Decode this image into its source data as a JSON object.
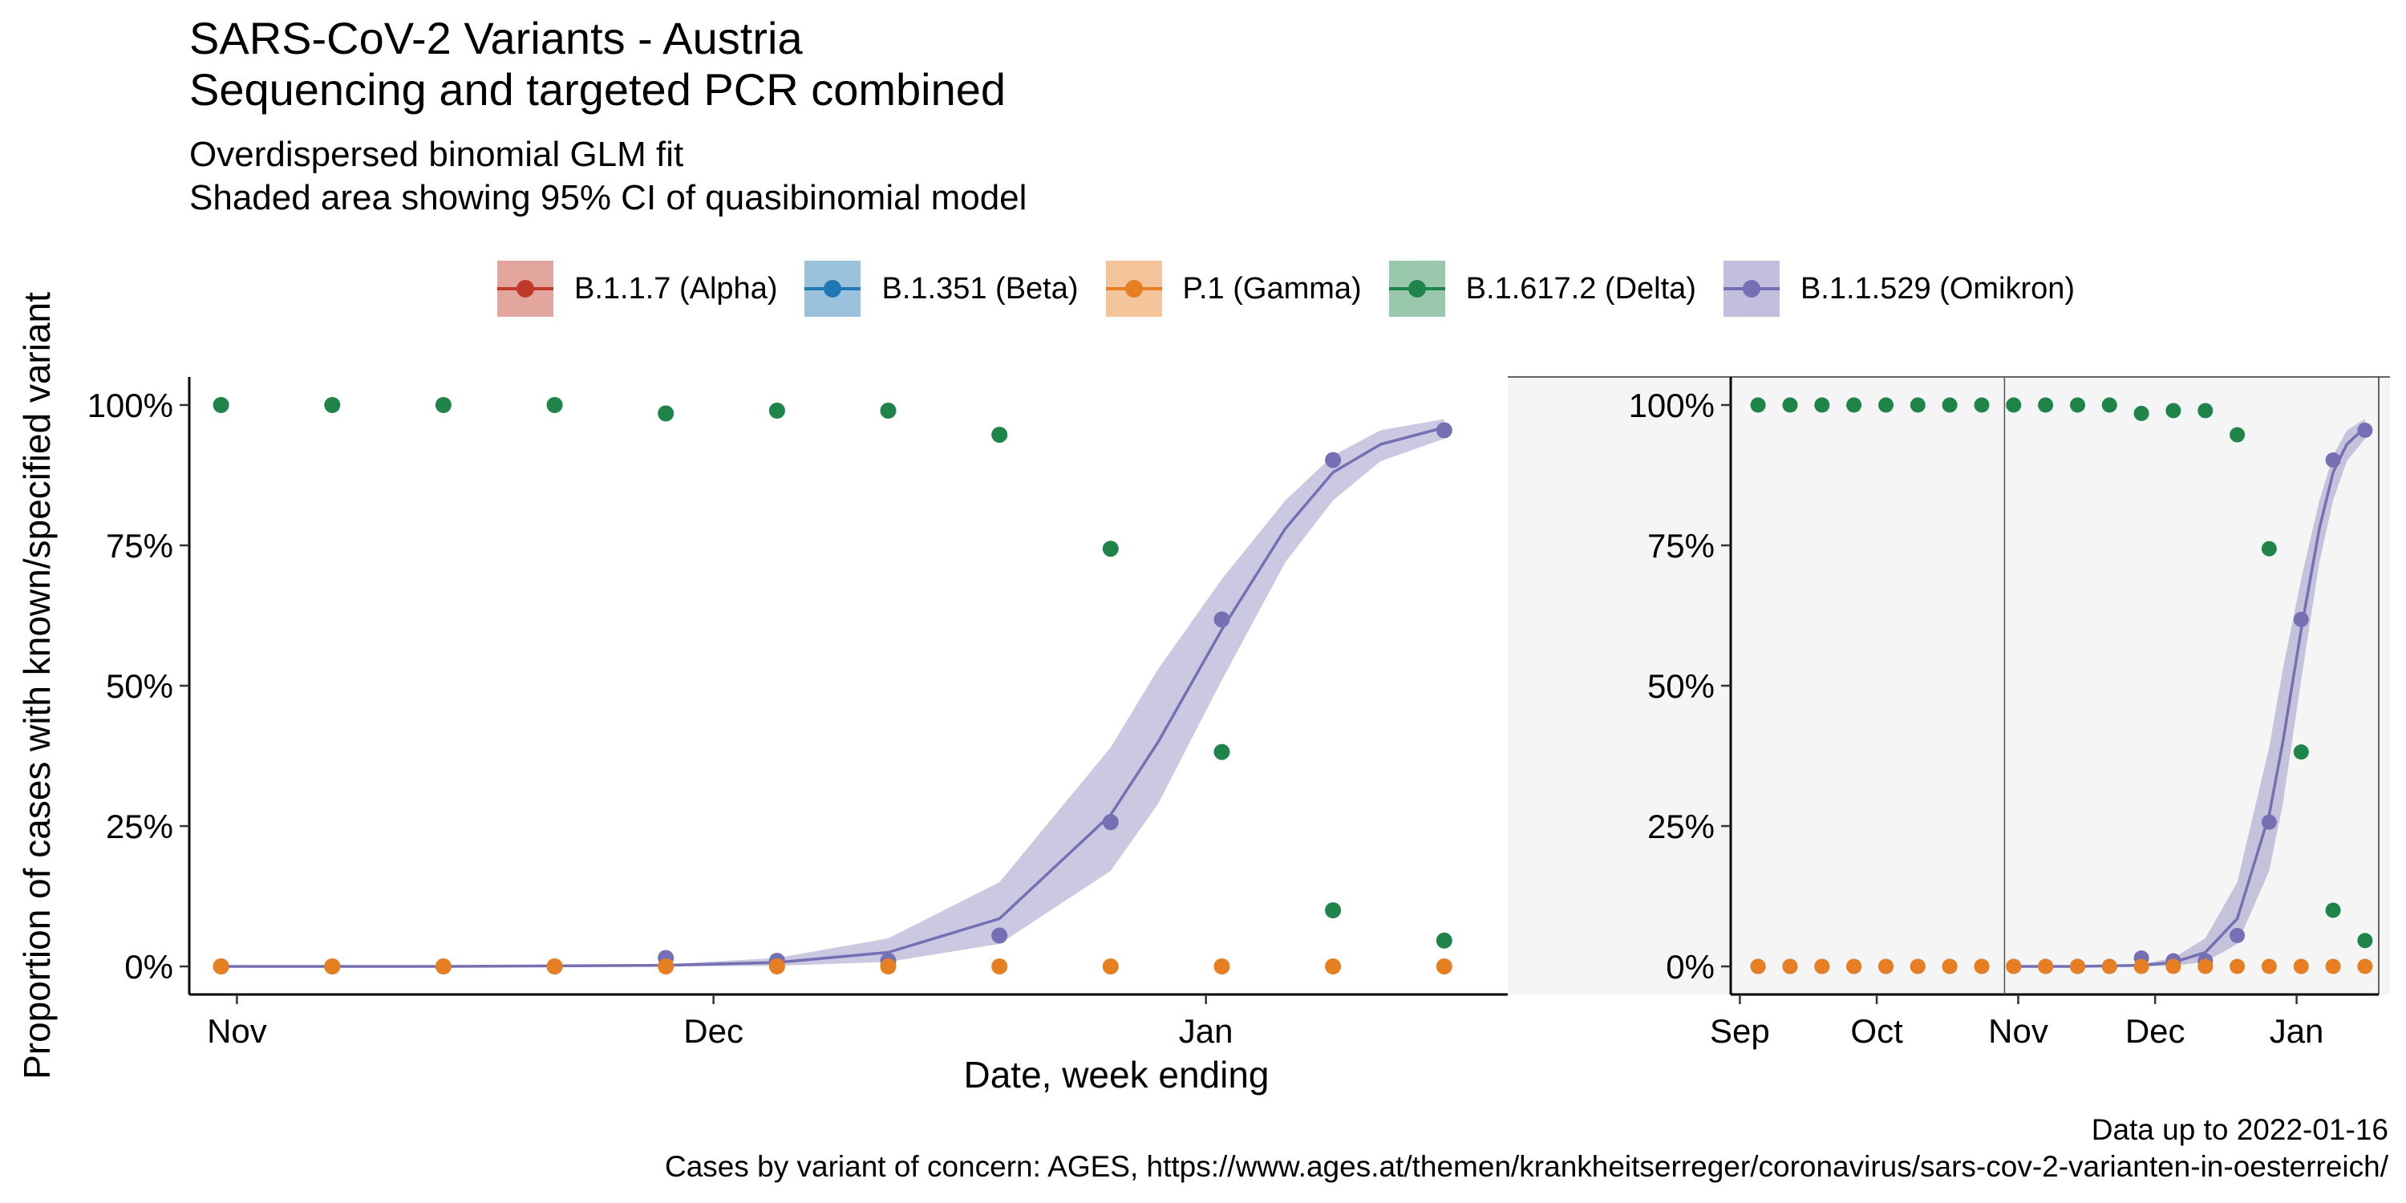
{
  "header": {
    "title_line1": "SARS-CoV-2 Variants - Austria",
    "title_line2": "Sequencing and targeted PCR combined",
    "subtitle_line1": "Overdispersed binomial GLM fit",
    "subtitle_line2": "Shaded area showing 95% CI of quasibinomial model"
  },
  "legend": [
    {
      "label": "B.1.1.7 (Alpha)",
      "color": "#c0392b"
    },
    {
      "label": "B.1.351 (Beta)",
      "color": "#1f78b4"
    },
    {
      "label": "P.1 (Gamma)",
      "color": "#e67e22"
    },
    {
      "label": "B.1.617.2 (Delta)",
      "color": "#1e8449"
    },
    {
      "label": "B.1.1.529 (Omikron)",
      "color": "#7570b3"
    }
  ],
  "caption": {
    "line1": "Data up to 2022-01-16",
    "line2": "Cases by variant of concern: AGES, https://www.ages.at/themen/krankheitserreger/coronavirus/sars-cov-2-varianten-in-oesterreich/"
  },
  "chart_data": [
    {
      "type": "scatter",
      "panel": "main",
      "xlabel": "Date, week ending",
      "ylabel": "Proportion of cases with known/specified variant",
      "x_ticks": [
        {
          "label": "Nov",
          "date": "2021-11-01"
        },
        {
          "label": "Dec",
          "date": "2021-12-01"
        },
        {
          "label": "Jan",
          "date": "2022-01-01"
        }
      ],
      "y_ticks": [
        "0%",
        "25%",
        "50%",
        "75%",
        "100%"
      ],
      "xlim": [
        "2021-10-29",
        "2022-01-20"
      ],
      "ylim": [
        -0.05,
        1.05
      ],
      "grid": false,
      "legend_position": "top",
      "dates": [
        "2021-10-31",
        "2021-11-07",
        "2021-11-14",
        "2021-11-21",
        "2021-11-28",
        "2021-12-05",
        "2021-12-12",
        "2021-12-19",
        "2021-12-26",
        "2022-01-02",
        "2022-01-09",
        "2022-01-16"
      ],
      "series": [
        {
          "name": "B.1.617.2 (Delta)",
          "color": "#1e8449",
          "values": [
            1.0,
            1.0,
            1.0,
            1.0,
            0.985,
            0.99,
            0.99,
            0.947,
            0.744,
            0.382,
            0.1,
            0.046
          ]
        },
        {
          "name": "B.1.1.529 (Omikron)",
          "color": "#7570b3",
          "values": [
            0.0,
            0.0,
            0.0,
            0.0,
            0.015,
            0.01,
            0.01,
            0.055,
            0.257,
            0.618,
            0.902,
            0.955
          ]
        },
        {
          "name": "P.1 (Gamma)",
          "color": "#e67e22",
          "values": [
            0.0,
            0.0,
            0.0,
            0.0,
            0.0,
            0.0,
            0.0,
            0.0,
            0.0,
            0.0,
            0.0,
            0.0
          ]
        }
      ],
      "fit": {
        "series": "B.1.1.529 (Omikron)",
        "color": "#7570b3",
        "x": [
          "2021-10-31",
          "2021-11-14",
          "2021-11-28",
          "2021-12-05",
          "2021-12-12",
          "2021-12-19",
          "2021-12-26",
          "2021-12-29",
          "2022-01-02",
          "2022-01-06",
          "2022-01-09",
          "2022-01-12",
          "2022-01-16"
        ],
        "y": [
          0.0,
          0.0,
          0.002,
          0.007,
          0.025,
          0.085,
          0.27,
          0.4,
          0.6,
          0.78,
          0.88,
          0.93,
          0.96
        ],
        "lower": [
          0.0,
          0.0,
          0.0,
          0.001,
          0.008,
          0.04,
          0.17,
          0.29,
          0.51,
          0.72,
          0.83,
          0.9,
          0.94
        ],
        "upper": [
          0.0,
          0.0,
          0.004,
          0.015,
          0.05,
          0.15,
          0.39,
          0.53,
          0.69,
          0.83,
          0.91,
          0.955,
          0.975
        ]
      }
    },
    {
      "type": "scatter",
      "panel": "inset",
      "x_ticks": [
        {
          "label": "Sep",
          "date": "2021-09-01"
        },
        {
          "label": "Oct",
          "date": "2021-10-01"
        },
        {
          "label": "Nov",
          "date": "2021-11-01"
        },
        {
          "label": "Dec",
          "date": "2021-12-01"
        },
        {
          "label": "Jan",
          "date": "2022-01-01"
        }
      ],
      "y_ticks": [
        "0%",
        "25%",
        "50%",
        "75%",
        "100%"
      ],
      "xlim": [
        "2021-08-30",
        "2022-01-19"
      ],
      "ylim": [
        -0.05,
        1.05
      ],
      "reference_date": "2021-10-29",
      "dates": [
        "2021-09-05",
        "2021-09-12",
        "2021-09-19",
        "2021-09-26",
        "2021-10-03",
        "2021-10-10",
        "2021-10-17",
        "2021-10-24",
        "2021-10-31",
        "2021-11-07",
        "2021-11-14",
        "2021-11-21",
        "2021-11-28",
        "2021-12-05",
        "2021-12-12",
        "2021-12-19",
        "2021-12-26",
        "2022-01-02",
        "2022-01-09",
        "2022-01-16"
      ],
      "series": [
        {
          "name": "B.1.617.2 (Delta)",
          "color": "#1e8449",
          "values": [
            1.0,
            1.0,
            1.0,
            1.0,
            1.0,
            1.0,
            1.0,
            1.0,
            1.0,
            1.0,
            1.0,
            1.0,
            0.985,
            0.99,
            0.99,
            0.947,
            0.744,
            0.382,
            0.1,
            0.046
          ]
        },
        {
          "name": "B.1.1.529 (Omikron)",
          "color": "#7570b3",
          "values": [
            0.0,
            0.0,
            0.0,
            0.0,
            0.0,
            0.0,
            0.0,
            0.0,
            0.0,
            0.0,
            0.0,
            0.0,
            0.015,
            0.01,
            0.01,
            0.055,
            0.257,
            0.618,
            0.902,
            0.955
          ]
        },
        {
          "name": "P.1 (Gamma)",
          "color": "#e67e22",
          "values": [
            0.0,
            0.0,
            0.0,
            0.0,
            0.0,
            0.0,
            0.0,
            0.0,
            0.0,
            0.0,
            0.0,
            0.0,
            0.0,
            0.0,
            0.0,
            0.0,
            0.0,
            0.0,
            0.0,
            0.0
          ]
        }
      ]
    }
  ]
}
